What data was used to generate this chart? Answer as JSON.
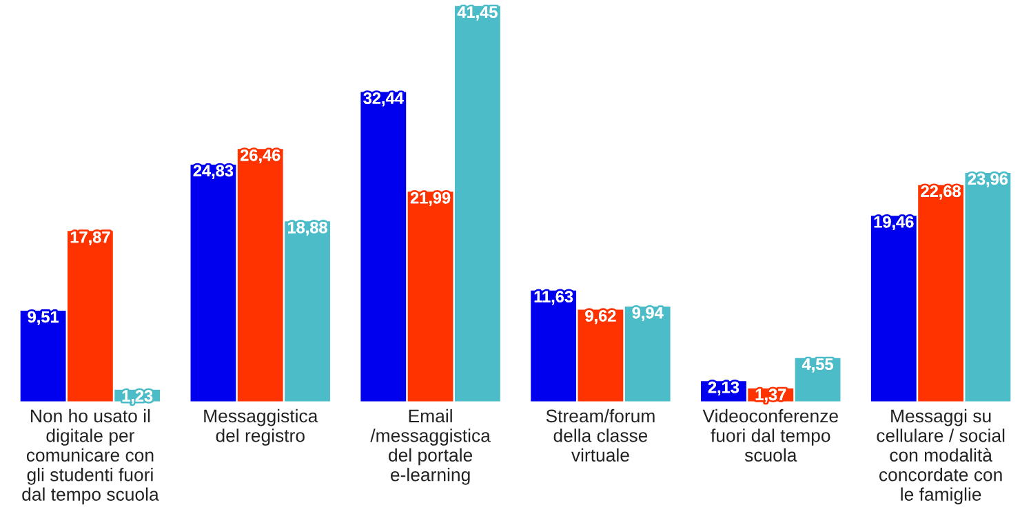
{
  "chart_data": {
    "type": "bar",
    "categories": [
      "Non ho usato il\ndigitale per\ncomunicare con\ngli studenti fuori\ndal tempo scuola",
      "Messaggistica\ndel registro",
      "Email\n/messaggistica\ndel portale\ne-learning",
      "Stream/forum\ndella classe\nvirtuale",
      "Videoconferenze\nfuori dal tempo\nscuola",
      "Messaggi su\ncellulare / social\ncon modalità\nconcordate con\nle famiglie"
    ],
    "series": [
      {
        "color": "#0000ee",
        "values": [
          9.51,
          24.83,
          32.44,
          11.63,
          2.13,
          19.46
        ],
        "value_labels": [
          "9,51",
          "24,83",
          "32,44",
          "11,63",
          "2,13",
          "19,46"
        ]
      },
      {
        "color": "#ff3300",
        "values": [
          17.87,
          26.46,
          21.99,
          9.62,
          1.37,
          22.68
        ],
        "value_labels": [
          "17,87",
          "26,46",
          "21,99",
          "9,62",
          "1,37",
          "22,68"
        ]
      },
      {
        "color": "#4bbcc8",
        "values": [
          1.23,
          18.88,
          41.45,
          9.94,
          4.55,
          23.96
        ],
        "value_labels": [
          "1,23",
          "18,88",
          "41,45",
          "9,94",
          "4,55",
          "23,96"
        ]
      }
    ],
    "tick_labels": "x",
    "grid": false,
    "legend": false
  }
}
